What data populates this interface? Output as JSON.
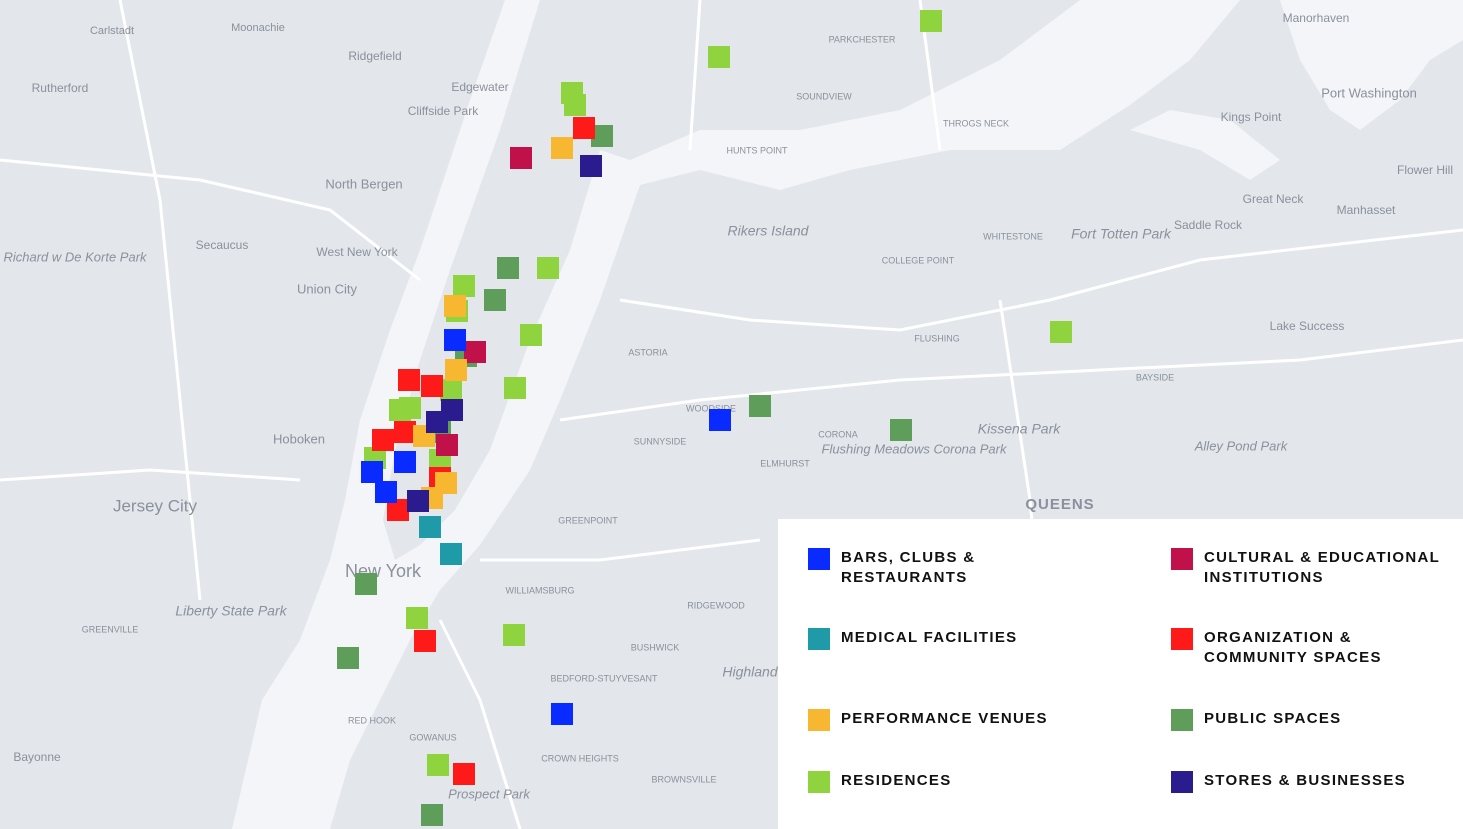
{
  "places": [
    "Moonachie",
    "Carlstadt",
    "Ridgefield",
    "Rutherford",
    "Edgewater",
    "Cliffside Park",
    "North Bergen",
    "Secaucus",
    "West New York",
    "Union City",
    "Hoboken",
    "Jersey City",
    "Liberty State Park",
    "New York",
    "Bayonne",
    "Rikers Island",
    "Fort Totten Park",
    "Kissena Park",
    "Flushing Meadows Corona Park",
    "Prospect Park",
    "QUEENS",
    "ASTORIA",
    "SUNNYSIDE",
    "CORONA",
    "ELMHURST",
    "WOODSIDE",
    "FLUSHING",
    "BAYSIDE",
    "WHITESTONE",
    "COLLEGE POINT",
    "GREENPOINT",
    "WILLIAMSBURG",
    "BUSHWICK",
    "RIDGEWOOD",
    "BEDFORD-STUYVESANT",
    "CROWN HEIGHTS",
    "BROWNSVILLE",
    "RED HOOK",
    "GOWANUS",
    "Manhasset",
    "Great Neck",
    "Saddle Rock",
    "Kings Point",
    "Port Washington",
    "Manorhaven",
    "Flower Hill",
    "Lake Success",
    "Alley Pond Park",
    "HUNTS POINT",
    "THROGS NECK",
    "SOUNDVIEW",
    "PARKCHESTER",
    "GREENVILLE",
    "Highland",
    "Richard w De Korte Park"
  ],
  "legend": [
    {
      "label": [
        "BARS, CLUBS &",
        "RESTAURANTS"
      ],
      "color": "#0a2bff"
    },
    {
      "label": [
        "MEDICAL FACILITIES"
      ],
      "color": "#1f9aa8"
    },
    {
      "label": [
        "PERFORMANCE VENUES"
      ],
      "color": "#f7b731"
    },
    {
      "label": [
        "RESIDENCES"
      ],
      "color": "#8fd43f"
    },
    {
      "label": [
        "CULTURAL & EDUCATIONAL",
        "INSTITUTIONS"
      ],
      "color": "#c0114a"
    },
    {
      "label": [
        "ORGANIZATION &",
        "COMMUNITY SPACES"
      ],
      "color": "#ff1a1a"
    },
    {
      "label": [
        "PUBLIC SPACES"
      ],
      "color": "#5f9e5a"
    },
    {
      "label": [
        "STORES & BUSINESSES"
      ],
      "color": "#2a1b8f"
    }
  ]
}
